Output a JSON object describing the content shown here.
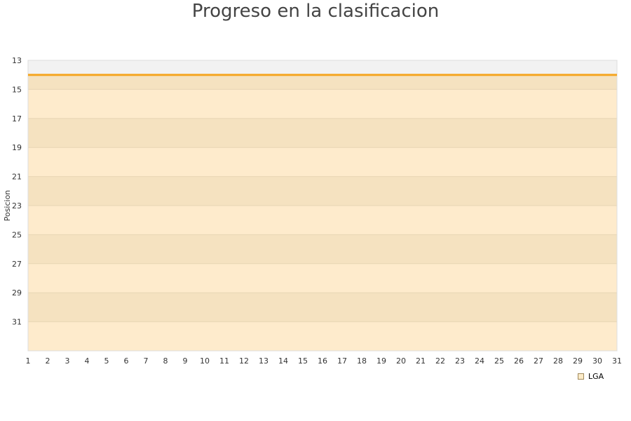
{
  "chart_data": {
    "type": "line",
    "title": "Progreso en la clasificacion",
    "ylabel": "Posicion",
    "xlabel": "",
    "x": [
      1,
      2,
      3,
      4,
      5,
      6,
      7,
      8,
      9,
      10,
      11,
      12,
      13,
      14,
      15,
      16,
      17,
      18,
      19,
      20,
      21,
      22,
      23,
      24,
      25,
      26,
      27,
      28,
      29,
      30,
      31
    ],
    "series": [
      {
        "name": "LGA",
        "values": [
          14,
          14,
          14,
          14,
          14,
          14,
          14,
          14,
          14,
          14,
          14,
          14,
          14,
          14,
          14,
          14,
          14,
          14,
          14,
          14,
          14,
          14,
          14,
          14,
          14,
          14,
          14,
          14,
          14,
          14,
          14
        ],
        "color": "#f5a623"
      }
    ],
    "ylim": [
      13,
      33
    ],
    "y_inverted": true,
    "yticks": [
      13,
      15,
      17,
      19,
      21,
      23,
      25,
      27,
      29,
      31
    ],
    "grid": true,
    "legend": "bottom-right",
    "band_colors": {
      "top": "#f2f2f2",
      "dark": "#f5e2c0",
      "light": "#feebcc"
    }
  }
}
